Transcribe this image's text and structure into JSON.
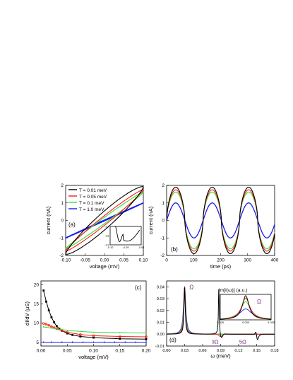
{
  "colors": {
    "black": "#000000",
    "red": "#ff1a1a",
    "green": "#33dd33",
    "blue": "#1a1aee",
    "purple": "#7a1f7a"
  },
  "chart_data": [
    {
      "id": "a",
      "type": "line",
      "panel_label": "(a)",
      "xlabel": "voltage (mV)",
      "ylabel": "current (nA)",
      "xlim": [
        -0.1,
        0.1
      ],
      "ylim": [
        -2,
        2
      ],
      "xticks": [
        -0.1,
        -0.05,
        0.0,
        0.05,
        0.1
      ],
      "xtick_labels": [
        "-0.10",
        "-0.05",
        "0.00",
        "0.05",
        "0.10"
      ],
      "yticks": [
        -2,
        -1,
        0,
        1,
        2
      ],
      "ytick_labels": [
        "-2",
        "-1",
        "0",
        "1",
        "2"
      ],
      "legend": {
        "placement": "top-left",
        "entries": [
          "T = 0.01 meV",
          "T = 0.05 meV",
          "T = 0.1 meV",
          "T = 1.0 meV"
        ]
      },
      "series": [
        {
          "name": "T = 0.01 meV",
          "color": "black",
          "amplitude": 1.9,
          "loop_offset": 0.55
        },
        {
          "name": "T = 0.05 meV",
          "color": "red",
          "amplitude": 1.75,
          "loop_offset": 0.28
        },
        {
          "name": "T = 0.1 meV",
          "color": "green",
          "amplitude": 1.62,
          "loop_offset": 0.18
        },
        {
          "name": "T = 1.0 meV",
          "color": "blue",
          "amplitude": 1.0,
          "loop_offset": 0.02
        }
      ],
      "inset": {
        "xlim": [
          -0.1,
          -0.08
        ],
        "ylim": [
          -1.9,
          -1.7
        ],
        "xticks": [
          -0.1,
          -0.09,
          -0.08
        ],
        "xtick_labels": [
          "-0.10",
          "-0.09",
          "-0.08"
        ],
        "yticks": [
          -1.9,
          -1.8,
          -1.7
        ],
        "ytick_labels": [
          "-1.9",
          "-1.8",
          "-1.7"
        ]
      }
    },
    {
      "id": "b",
      "type": "line",
      "panel_label": "(b)",
      "xlabel": "time (ps)",
      "ylabel": "current (nA)",
      "xlim": [
        0,
        400
      ],
      "ylim": [
        -2,
        2
      ],
      "xticks": [
        0,
        100,
        200,
        300,
        400
      ],
      "xtick_labels": [
        "0",
        "100",
        "200",
        "300",
        "400"
      ],
      "yticks": [
        -2,
        -1,
        0,
        1,
        2
      ],
      "ytick_labels": [
        "-2",
        "-1",
        "0",
        "1",
        "2"
      ],
      "period_ps": 135,
      "series": [
        {
          "color": "black",
          "amplitude": 1.9
        },
        {
          "color": "red",
          "amplitude": 1.75
        },
        {
          "color": "green",
          "amplitude": 1.62
        },
        {
          "color": "blue",
          "amplitude": 1.0
        }
      ]
    },
    {
      "id": "c",
      "type": "scatter",
      "panel_label": "(c)",
      "xlabel": "voltage (mV)",
      "ylabel": "dI/dV (μS)",
      "xlim": [
        0,
        0.2
      ],
      "ylim": [
        4,
        21
      ],
      "xticks": [
        0,
        0.05,
        0.1,
        0.15,
        0.2
      ],
      "xtick_labels": [
        "0.00",
        "0.05",
        "0.10",
        "0.15",
        "0.20"
      ],
      "yticks": [
        5,
        10,
        15,
        20
      ],
      "ytick_labels": [
        "5",
        "10",
        "15",
        "20"
      ],
      "series": [
        {
          "color": "black",
          "x": [
            0.005,
            0.01,
            0.015,
            0.02,
            0.025,
            0.03,
            0.035,
            0.04,
            0.05,
            0.06,
            0.075,
            0.1,
            0.15,
            0.2
          ],
          "y": [
            18.5,
            15.6,
            13.3,
            11.5,
            10.2,
            9.2,
            8.5,
            8.0,
            7.3,
            6.9,
            6.5,
            6.2,
            5.9,
            5.8
          ]
        },
        {
          "color": "red",
          "x": [
            0.005,
            0.01,
            0.015,
            0.02,
            0.025,
            0.03,
            0.04,
            0.05,
            0.075,
            0.1,
            0.15,
            0.2
          ],
          "y": [
            9.9,
            9.7,
            9.4,
            9.1,
            8.8,
            8.5,
            8.0,
            7.6,
            7.0,
            6.7,
            6.5,
            6.4
          ]
        },
        {
          "color": "green",
          "x": [
            0.005,
            0.01,
            0.02,
            0.03,
            0.04,
            0.05,
            0.075,
            0.1,
            0.15,
            0.2
          ],
          "y": [
            9.0,
            8.9,
            8.7,
            8.5,
            8.3,
            8.1,
            7.8,
            7.6,
            7.5,
            7.4
          ]
        },
        {
          "color": "blue",
          "x": [
            0.005,
            0.02,
            0.04,
            0.06,
            0.08,
            0.1,
            0.12,
            0.14,
            0.16,
            0.18,
            0.2
          ],
          "y": [
            5.0,
            5.0,
            5.0,
            5.0,
            5.0,
            5.0,
            5.0,
            5.0,
            5.0,
            5.0,
            5.0
          ]
        }
      ]
    },
    {
      "id": "d",
      "type": "line",
      "panel_label": "(d)",
      "xlabel": "ω (meV)",
      "ylabel": "",
      "xlim": [
        0,
        0.18
      ],
      "ylim": [
        -0.01,
        0.045
      ],
      "xticks": [
        0,
        0.03,
        0.06,
        0.09,
        0.12,
        0.15,
        0.18
      ],
      "xtick_labels": [
        "0.00",
        "0.03",
        "0.06",
        "0.09",
        "0.12",
        "0.15",
        "0.18"
      ],
      "yticks": [
        -0.01,
        0.0,
        0.01,
        0.02,
        0.03,
        0.04
      ],
      "ytick_labels": [
        "-0.01",
        "0.00",
        "0.01",
        "0.02",
        "0.03",
        "0.04"
      ],
      "annotations": [
        "Ω",
        "3Ω",
        "5Ω"
      ],
      "peak_omega": 0.03,
      "series": [
        {
          "color": "black",
          "height": 0.04,
          "width": 0.0012
        },
        {
          "color": "red",
          "height": 0.04,
          "width": 0.0015
        },
        {
          "color": "green",
          "height": 0.04,
          "width": 0.0018
        },
        {
          "color": "blue",
          "height": 0.04,
          "width": 0.0022
        }
      ],
      "black_peak_omega": 0.087,
      "inset": {
        "title": "Im[I(ω)] (a.u.)",
        "annotation": "Ω",
        "xlim": [
          0.025,
          0.035
        ],
        "xticks": [
          0.025,
          0.03,
          0.035
        ],
        "xtick_labels": [
          "0.025",
          "0.030",
          "0.035"
        ],
        "series": [
          {
            "color": "black",
            "height": 1.0,
            "width": 0.0008
          },
          {
            "color": "red",
            "height": 0.9,
            "width": 0.001
          },
          {
            "color": "green",
            "height": 0.75,
            "width": 0.0012
          },
          {
            "color": "blue",
            "height": 0.45,
            "width": 0.0015
          }
        ]
      }
    }
  ]
}
